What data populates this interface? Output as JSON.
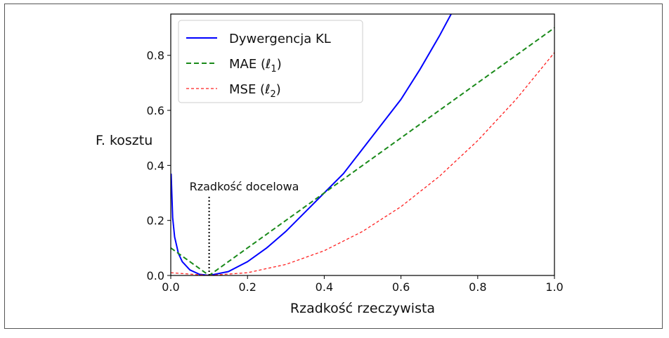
{
  "chart_data": {
    "type": "line",
    "xlabel": "Rzadkość rzeczywista",
    "ylabel": "F. kosztu",
    "xlim": [
      0.0,
      1.0
    ],
    "ylim": [
      0.0,
      0.95
    ],
    "xticks": [
      "0.0",
      "0.2",
      "0.4",
      "0.6",
      "0.8",
      "1.0"
    ],
    "yticks": [
      "0.0",
      "0.2",
      "0.4",
      "0.6",
      "0.8"
    ],
    "legend_position": "top-left",
    "target_sparsity": 0.1,
    "annotation": "Rzadkość docelowa",
    "series": [
      {
        "name": "Dywergencja KL",
        "name_plain": "Dywergencja KL",
        "style": "solid",
        "color": "#0000ff",
        "x": [
          0.001,
          0.005,
          0.01,
          0.02,
          0.03,
          0.05,
          0.075,
          0.1,
          0.15,
          0.2,
          0.25,
          0.3,
          0.35,
          0.4,
          0.45,
          0.5,
          0.55,
          0.6,
          0.65,
          0.7,
          0.75
        ],
        "y": [
          0.37,
          0.21,
          0.14,
          0.08,
          0.05,
          0.02,
          0.004,
          0.0,
          0.014,
          0.05,
          0.1,
          0.16,
          0.23,
          0.3,
          0.37,
          0.46,
          0.55,
          0.64,
          0.75,
          0.87,
          1.0
        ]
      },
      {
        "name": "MAE (ℓ1)",
        "name_plain": "MAE (",
        "name_symbol": "ℓ",
        "name_sub": "1",
        "style": "dashed",
        "color": "#1a8a1a",
        "x": [
          0.0,
          0.1,
          1.0
        ],
        "y": [
          0.1,
          0.0,
          0.9
        ]
      },
      {
        "name": "MSE (ℓ2)",
        "name_plain": "MSE (",
        "name_symbol": "ℓ",
        "name_sub": "2",
        "style": "dashed-fine",
        "color": "#ff2020",
        "x": [
          0.0,
          0.1,
          0.2,
          0.3,
          0.4,
          0.5,
          0.6,
          0.7,
          0.8,
          0.9,
          1.0
        ],
        "y": [
          0.01,
          0.0,
          0.01,
          0.04,
          0.09,
          0.16,
          0.25,
          0.36,
          0.49,
          0.64,
          0.81
        ]
      }
    ]
  }
}
